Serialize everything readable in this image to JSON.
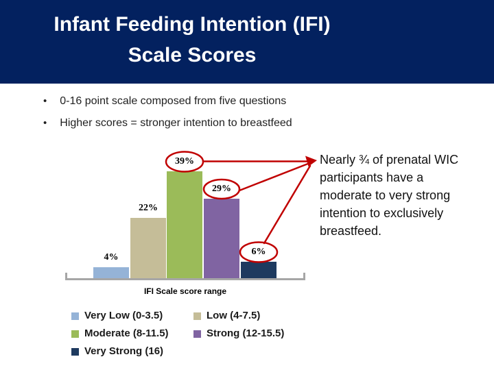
{
  "header": {
    "title": "Infant Feeding Intention (IFI)\nScale Scores",
    "background_color": "#03215F",
    "text_color": "#FFFFFF"
  },
  "bullets": [
    "0-16 point scale composed from five questions",
    "Higher scores = stronger intention to breastfeed"
  ],
  "chart_data": {
    "type": "bar",
    "title": "",
    "xlabel": "IFI Scale score range",
    "ylabel": "",
    "categories": [
      "Very Low (0-3.5)",
      "Low (4-7.5)",
      "Moderate (8-11.5)",
      "Strong (12-15.5)",
      "Very Strong (16)"
    ],
    "values": [
      4,
      22,
      39,
      29,
      6
    ],
    "value_labels": [
      "4%",
      "22%",
      "39%",
      "29%",
      "6%"
    ],
    "unit": "%",
    "colors": [
      "#95B3D7",
      "#C5BD98",
      "#9BBB59",
      "#8064A2",
      "#1E3A5F"
    ],
    "ylim": [
      0,
      40
    ],
    "grid": false,
    "y_axis_shown": false,
    "legend_position": "bottom"
  },
  "annotation": {
    "text": "Nearly ¾ of prenatal WIC\nparticipants have a\nmoderate to very strong\nintention to exclusively\nbreastfeed.",
    "color": "#C00000",
    "circled_values": [
      "39%",
      "29%",
      "6%"
    ]
  },
  "axis_color": "#A6A6A6"
}
